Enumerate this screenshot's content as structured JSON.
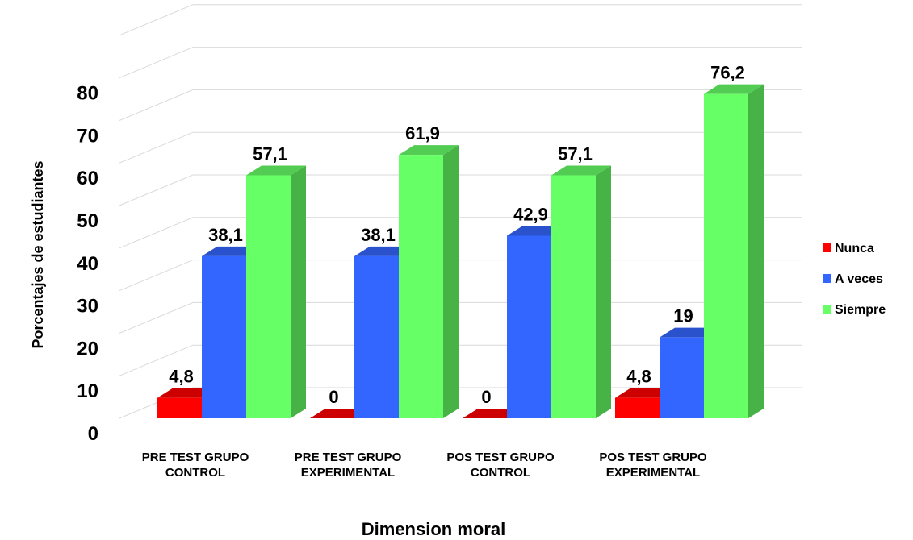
{
  "chart_data": {
    "type": "bar",
    "title": "",
    "xlabel": "Dimension moral",
    "ylabel": "Porcentajes de estudiantes",
    "ylim": [
      0,
      80
    ],
    "yticks": [
      "0",
      "10",
      "20",
      "30",
      "40",
      "50",
      "60",
      "70",
      "80"
    ],
    "grid": true,
    "legend_position": "right",
    "categories": [
      [
        "PRE TEST GRUPO",
        "CONTROL"
      ],
      [
        "PRE TEST GRUPO",
        "EXPERIMENTAL"
      ],
      [
        "POS TEST GRUPO",
        "CONTROL"
      ],
      [
        "POS TEST GRUPO",
        "EXPERIMENTAL"
      ]
    ],
    "series": [
      {
        "name": "Nunca",
        "color": "#ff0000",
        "values": [
          4.8,
          0,
          0,
          4.8
        ],
        "labels": [
          "4,8",
          "0",
          "0",
          "4,8"
        ]
      },
      {
        "name": "A veces",
        "color": "#3366ff",
        "values": [
          38.1,
          38.1,
          42.9,
          19
        ],
        "labels": [
          "38,1",
          "38,1",
          "42,9",
          "19"
        ]
      },
      {
        "name": "Siempre",
        "color": "#66ff66",
        "values": [
          57.1,
          61.9,
          57.1,
          76.2
        ],
        "labels": [
          "57,1",
          "61,9",
          "57,1",
          "76,2"
        ]
      }
    ]
  }
}
